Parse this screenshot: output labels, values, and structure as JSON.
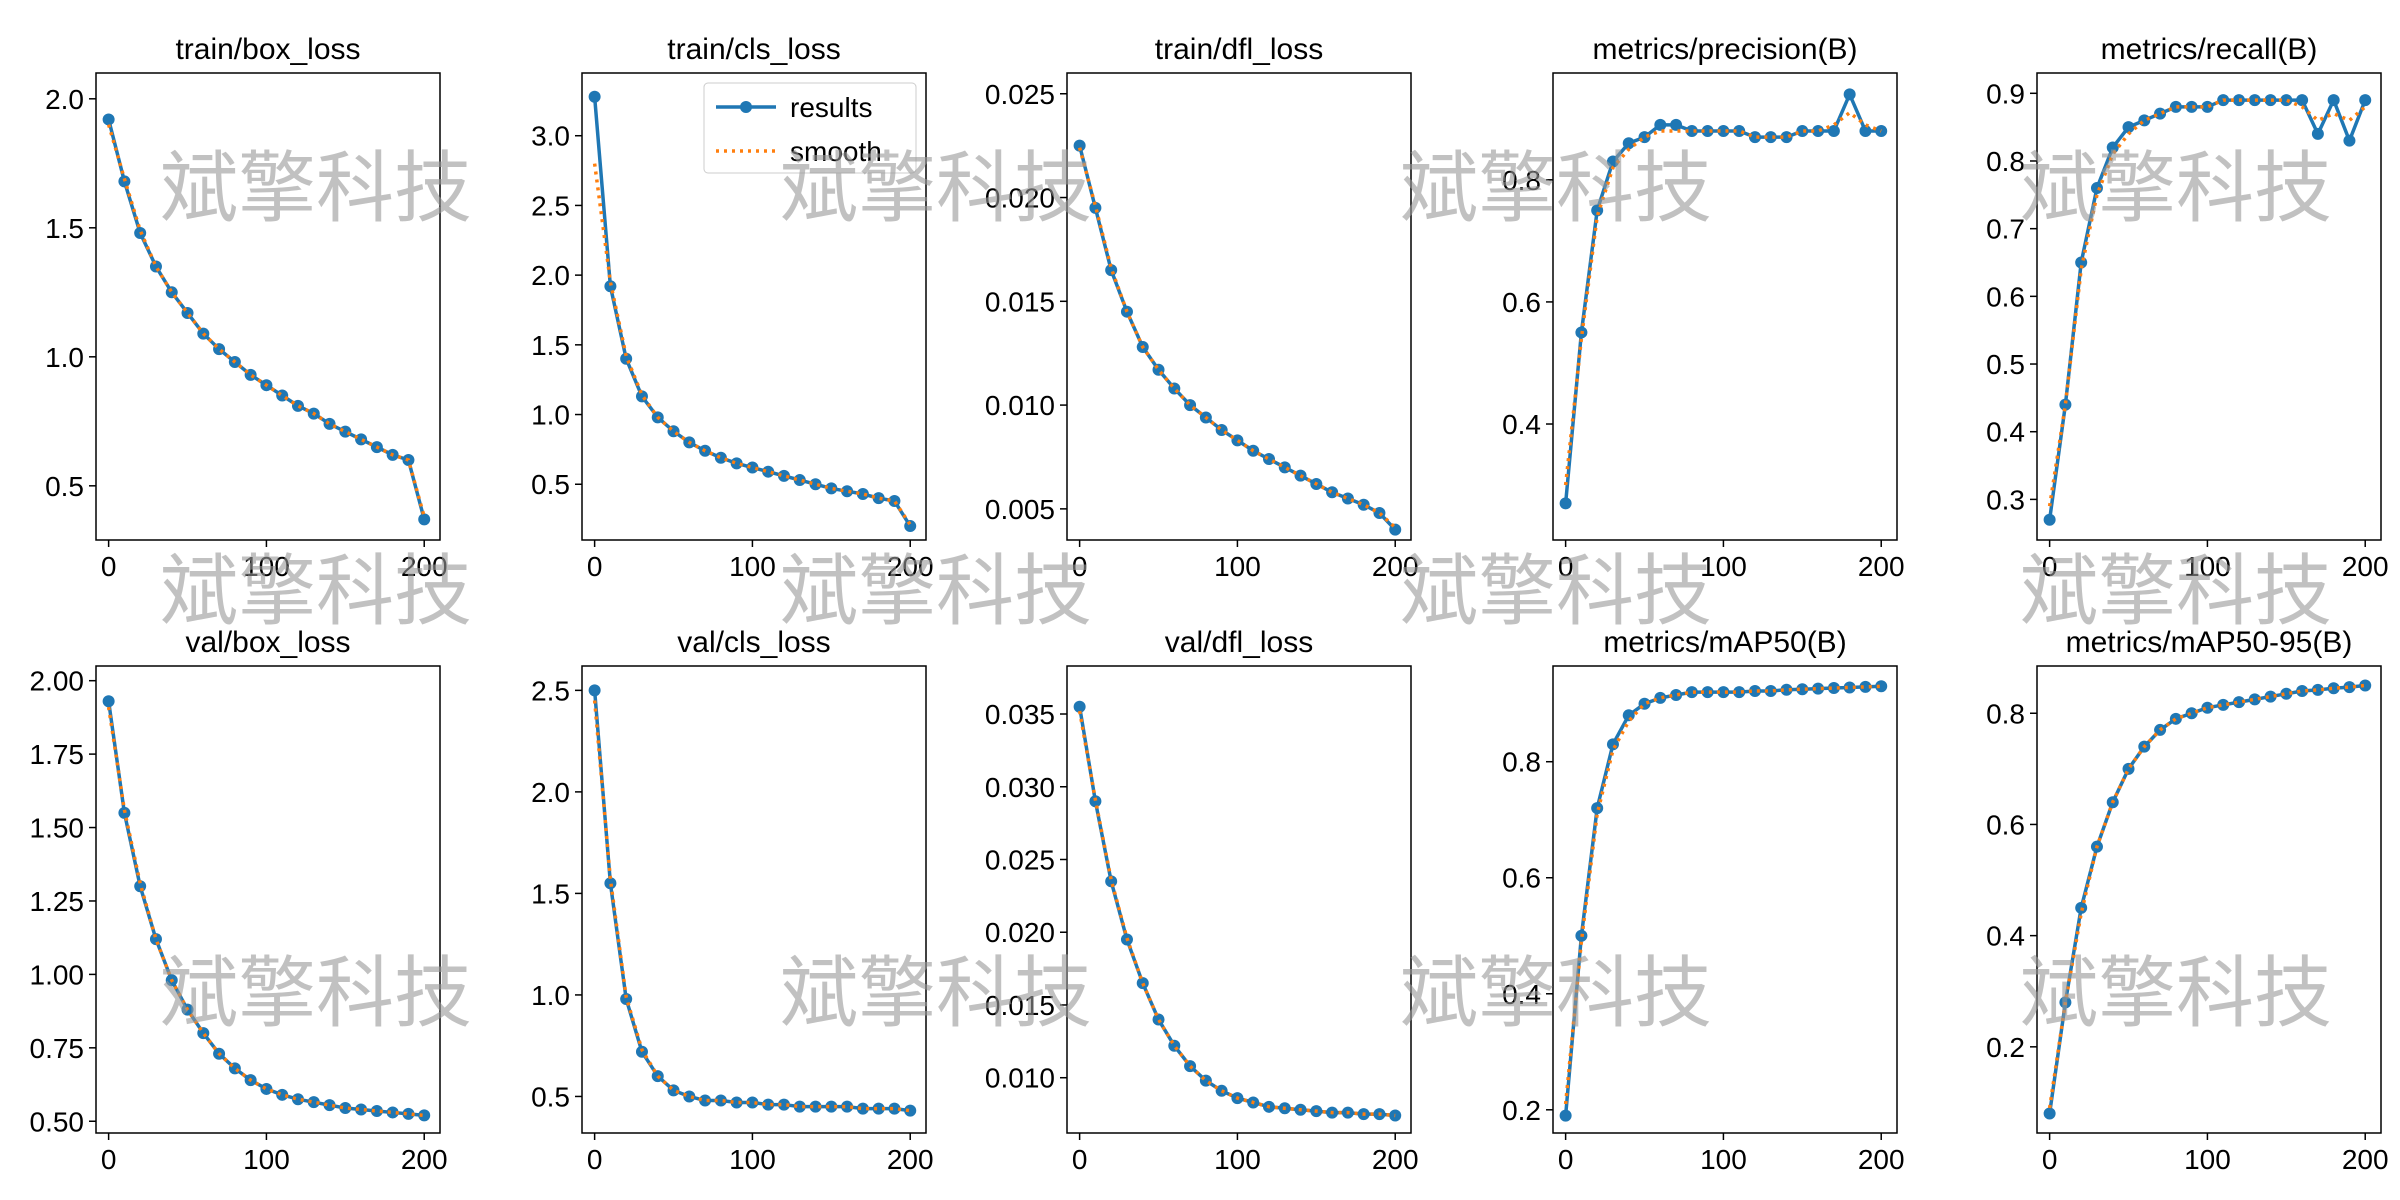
{
  "watermark": "斌擎科技",
  "chart_data": [
    {
      "type": "line",
      "title": "train/box_loss",
      "x": [
        0,
        10,
        20,
        30,
        40,
        50,
        60,
        70,
        80,
        90,
        100,
        110,
        120,
        130,
        140,
        150,
        160,
        170,
        180,
        190,
        200
      ],
      "xlim": [
        -8,
        210
      ],
      "xticks": [
        0,
        100,
        200
      ],
      "ylim": [
        0.29,
        2.1
      ],
      "yticks": [
        0.5,
        {
          "value": 1.0,
          "label": "1.0"
        },
        1.5,
        {
          "value": 2.0,
          "label": "2.0"
        }
      ],
      "legend": null,
      "series": [
        {
          "name": "results",
          "color": "#1f77b4",
          "values": [
            1.92,
            1.68,
            1.48,
            1.35,
            1.25,
            1.17,
            1.09,
            1.03,
            0.98,
            0.93,
            0.89,
            0.85,
            0.81,
            0.78,
            0.74,
            0.71,
            0.68,
            0.65,
            0.62,
            0.6,
            0.37
          ]
        },
        {
          "name": "smooth",
          "color": "#ff7f0e",
          "values": [
            1.9,
            1.69,
            1.49,
            1.35,
            1.25,
            1.17,
            1.09,
            1.03,
            0.98,
            0.93,
            0.89,
            0.85,
            0.81,
            0.78,
            0.74,
            0.71,
            0.68,
            0.65,
            0.62,
            0.6,
            0.38
          ]
        }
      ]
    },
    {
      "type": "line",
      "title": "train/cls_loss",
      "x": [
        0,
        10,
        20,
        30,
        40,
        50,
        60,
        70,
        80,
        90,
        100,
        110,
        120,
        130,
        140,
        150,
        160,
        170,
        180,
        190,
        200
      ],
      "xlim": [
        -8,
        210
      ],
      "xticks": [
        0,
        100,
        200
      ],
      "ylim": [
        0.1,
        3.45
      ],
      "yticks": [
        0.5,
        {
          "value": 1.0,
          "label": "1.0"
        },
        1.5,
        {
          "value": 2.0,
          "label": "2.0"
        },
        2.5,
        {
          "value": 3.0,
          "label": "3.0"
        }
      ],
      "legend": "upper right",
      "series": [
        {
          "name": "results",
          "color": "#1f77b4",
          "values": [
            3.28,
            1.92,
            1.4,
            1.13,
            0.98,
            0.88,
            0.8,
            0.74,
            0.69,
            0.65,
            0.62,
            0.59,
            0.56,
            0.53,
            0.5,
            0.47,
            0.45,
            0.43,
            0.4,
            0.38,
            0.2
          ]
        },
        {
          "name": "smooth",
          "color": "#ff7f0e",
          "values": [
            2.8,
            1.95,
            1.42,
            1.14,
            0.98,
            0.88,
            0.8,
            0.74,
            0.69,
            0.65,
            0.62,
            0.59,
            0.56,
            0.53,
            0.5,
            0.47,
            0.45,
            0.43,
            0.4,
            0.38,
            0.21
          ]
        }
      ]
    },
    {
      "type": "line",
      "title": "train/dfl_loss",
      "x": [
        0,
        10,
        20,
        30,
        40,
        50,
        60,
        70,
        80,
        90,
        100,
        110,
        120,
        130,
        140,
        150,
        160,
        170,
        180,
        190,
        200
      ],
      "xlim": [
        -8,
        210
      ],
      "xticks": [
        0,
        100,
        200
      ],
      "ylim": [
        0.0035,
        0.026
      ],
      "yticks": [
        0.005,
        {
          "value": 0.01,
          "label": "0.010"
        },
        0.015,
        {
          "value": 0.02,
          "label": "0.020"
        },
        0.025
      ],
      "legend": null,
      "series": [
        {
          "name": "results",
          "color": "#1f77b4",
          "values": [
            0.0225,
            0.0195,
            0.0165,
            0.0145,
            0.0128,
            0.0117,
            0.0108,
            0.01,
            0.0094,
            0.0088,
            0.0083,
            0.0078,
            0.0074,
            0.007,
            0.0066,
            0.0062,
            0.0058,
            0.0055,
            0.0052,
            0.0048,
            0.004
          ]
        },
        {
          "name": "smooth",
          "color": "#ff7f0e",
          "values": [
            0.0224,
            0.0196,
            0.0166,
            0.0145,
            0.0128,
            0.0117,
            0.0108,
            0.01,
            0.0094,
            0.0088,
            0.0083,
            0.0078,
            0.0074,
            0.007,
            0.0066,
            0.0062,
            0.0058,
            0.0055,
            0.0052,
            0.0048,
            0.0041
          ]
        }
      ]
    },
    {
      "type": "line",
      "title": "metrics/precision(B)",
      "x": [
        0,
        10,
        20,
        30,
        40,
        50,
        60,
        70,
        80,
        90,
        100,
        110,
        120,
        130,
        140,
        150,
        160,
        170,
        180,
        190,
        200
      ],
      "xlim": [
        -8,
        210
      ],
      "xticks": [
        0,
        100,
        200
      ],
      "ylim": [
        0.21,
        0.975
      ],
      "yticks": [
        0.4,
        0.6,
        0.8
      ],
      "legend": null,
      "series": [
        {
          "name": "results",
          "color": "#1f77b4",
          "values": [
            0.27,
            0.55,
            0.75,
            0.83,
            0.86,
            0.87,
            0.89,
            0.89,
            0.88,
            0.88,
            0.88,
            0.88,
            0.87,
            0.87,
            0.87,
            0.88,
            0.88,
            0.88,
            0.94,
            0.88,
            0.88
          ]
        },
        {
          "name": "smooth",
          "color": "#ff7f0e",
          "values": [
            0.3,
            0.54,
            0.74,
            0.82,
            0.85,
            0.87,
            0.88,
            0.88,
            0.88,
            0.88,
            0.88,
            0.88,
            0.87,
            0.87,
            0.87,
            0.88,
            0.88,
            0.89,
            0.91,
            0.89,
            0.88
          ]
        }
      ]
    },
    {
      "type": "line",
      "title": "metrics/recall(B)",
      "x": [
        0,
        10,
        20,
        30,
        40,
        50,
        60,
        70,
        80,
        90,
        100,
        110,
        120,
        130,
        140,
        150,
        160,
        170,
        180,
        190,
        200
      ],
      "xlim": [
        -8,
        210
      ],
      "xticks": [
        0,
        100,
        200
      ],
      "ylim": [
        0.24,
        0.93
      ],
      "yticks": [
        0.3,
        0.4,
        0.5,
        0.6,
        0.7,
        0.8,
        0.9
      ],
      "legend": null,
      "series": [
        {
          "name": "results",
          "color": "#1f77b4",
          "values": [
            0.27,
            0.44,
            0.65,
            0.76,
            0.82,
            0.85,
            0.86,
            0.87,
            0.88,
            0.88,
            0.88,
            0.89,
            0.89,
            0.89,
            0.89,
            0.89,
            0.89,
            0.84,
            0.89,
            0.83,
            0.89
          ]
        },
        {
          "name": "smooth",
          "color": "#ff7f0e",
          "values": [
            0.29,
            0.44,
            0.64,
            0.75,
            0.81,
            0.84,
            0.86,
            0.87,
            0.88,
            0.88,
            0.88,
            0.89,
            0.89,
            0.89,
            0.89,
            0.89,
            0.88,
            0.86,
            0.87,
            0.86,
            0.88
          ]
        }
      ]
    },
    {
      "type": "line",
      "title": "val/box_loss",
      "x": [
        0,
        10,
        20,
        30,
        40,
        50,
        60,
        70,
        80,
        90,
        100,
        110,
        120,
        130,
        140,
        150,
        160,
        170,
        180,
        190,
        200
      ],
      "xlim": [
        -8,
        210
      ],
      "xticks": [
        0,
        100,
        200
      ],
      "ylim": [
        0.46,
        2.05
      ],
      "yticks": [
        {
          "value": 0.5,
          "label": "0.50"
        },
        0.75,
        {
          "value": 1.0,
          "label": "1.00"
        },
        1.25,
        {
          "value": 1.5,
          "label": "1.50"
        },
        1.75,
        {
          "value": 2.0,
          "label": "2.00"
        }
      ],
      "legend": null,
      "series": [
        {
          "name": "results",
          "color": "#1f77b4",
          "values": [
            1.93,
            1.55,
            1.3,
            1.12,
            0.98,
            0.88,
            0.8,
            0.73,
            0.68,
            0.64,
            0.61,
            0.59,
            0.575,
            0.565,
            0.555,
            0.545,
            0.54,
            0.535,
            0.53,
            0.525,
            0.52
          ]
        },
        {
          "name": "smooth",
          "color": "#ff7f0e",
          "values": [
            1.91,
            1.56,
            1.31,
            1.12,
            0.98,
            0.88,
            0.8,
            0.73,
            0.68,
            0.64,
            0.61,
            0.59,
            0.575,
            0.565,
            0.555,
            0.545,
            0.54,
            0.535,
            0.53,
            0.525,
            0.52
          ]
        }
      ]
    },
    {
      "type": "line",
      "title": "val/cls_loss",
      "x": [
        0,
        10,
        20,
        30,
        40,
        50,
        60,
        70,
        80,
        90,
        100,
        110,
        120,
        130,
        140,
        150,
        160,
        170,
        180,
        190,
        200
      ],
      "xlim": [
        -8,
        210
      ],
      "xticks": [
        0,
        100,
        200
      ],
      "ylim": [
        0.32,
        2.62
      ],
      "yticks": [
        0.5,
        {
          "value": 1.0,
          "label": "1.0"
        },
        1.5,
        {
          "value": 2.0,
          "label": "2.0"
        },
        2.5
      ],
      "legend": null,
      "series": [
        {
          "name": "results",
          "color": "#1f77b4",
          "values": [
            2.5,
            1.55,
            0.98,
            0.72,
            0.6,
            0.53,
            0.5,
            0.48,
            0.48,
            0.47,
            0.47,
            0.46,
            0.46,
            0.45,
            0.45,
            0.45,
            0.45,
            0.44,
            0.44,
            0.44,
            0.43
          ]
        },
        {
          "name": "smooth",
          "color": "#ff7f0e",
          "values": [
            2.45,
            1.57,
            0.99,
            0.73,
            0.6,
            0.53,
            0.5,
            0.48,
            0.48,
            0.47,
            0.47,
            0.46,
            0.46,
            0.45,
            0.45,
            0.45,
            0.45,
            0.44,
            0.44,
            0.44,
            0.43
          ]
        }
      ]
    },
    {
      "type": "line",
      "title": "val/dfl_loss",
      "x": [
        0,
        10,
        20,
        30,
        40,
        50,
        60,
        70,
        80,
        90,
        100,
        110,
        120,
        130,
        140,
        150,
        160,
        170,
        180,
        190,
        200
      ],
      "xlim": [
        -8,
        210
      ],
      "xticks": [
        0,
        100,
        200
      ],
      "ylim": [
        0.0062,
        0.0383
      ],
      "yticks": [
        {
          "value": 0.01,
          "label": "0.010"
        },
        0.015,
        {
          "value": 0.02,
          "label": "0.020"
        },
        0.025,
        {
          "value": 0.03,
          "label": "0.030"
        },
        0.035
      ],
      "legend": null,
      "series": [
        {
          "name": "results",
          "color": "#1f77b4",
          "values": [
            0.0355,
            0.029,
            0.0235,
            0.0195,
            0.0165,
            0.014,
            0.0122,
            0.0108,
            0.0098,
            0.0091,
            0.0086,
            0.0083,
            0.008,
            0.0079,
            0.0078,
            0.0077,
            0.0076,
            0.0076,
            0.0075,
            0.0075,
            0.0074
          ]
        },
        {
          "name": "smooth",
          "color": "#ff7f0e",
          "values": [
            0.0352,
            0.0291,
            0.0236,
            0.0196,
            0.0165,
            0.014,
            0.0122,
            0.0108,
            0.0098,
            0.0091,
            0.0086,
            0.0083,
            0.008,
            0.0079,
            0.0078,
            0.0077,
            0.0076,
            0.0076,
            0.0075,
            0.0075,
            0.0074
          ]
        }
      ]
    },
    {
      "type": "line",
      "title": "metrics/mAP50(B)",
      "x": [
        0,
        10,
        20,
        30,
        40,
        50,
        60,
        70,
        80,
        90,
        100,
        110,
        120,
        130,
        140,
        150,
        160,
        170,
        180,
        190,
        200
      ],
      "xlim": [
        -8,
        210
      ],
      "xticks": [
        0,
        100,
        200
      ],
      "ylim": [
        0.16,
        0.965
      ],
      "yticks": [
        0.2,
        0.4,
        0.6,
        0.8
      ],
      "legend": null,
      "series": [
        {
          "name": "results",
          "color": "#1f77b4",
          "values": [
            0.19,
            0.5,
            0.72,
            0.83,
            0.88,
            0.9,
            0.91,
            0.915,
            0.92,
            0.92,
            0.92,
            0.92,
            0.922,
            0.922,
            0.924,
            0.925,
            0.926,
            0.927,
            0.928,
            0.929,
            0.93
          ]
        },
        {
          "name": "smooth",
          "color": "#ff7f0e",
          "values": [
            0.21,
            0.49,
            0.71,
            0.82,
            0.87,
            0.9,
            0.91,
            0.915,
            0.92,
            0.92,
            0.92,
            0.92,
            0.922,
            0.922,
            0.924,
            0.925,
            0.926,
            0.927,
            0.928,
            0.929,
            0.93
          ]
        }
      ]
    },
    {
      "type": "line",
      "title": "metrics/mAP50-95(B)",
      "x": [
        0,
        10,
        20,
        30,
        40,
        50,
        60,
        70,
        80,
        90,
        100,
        110,
        120,
        130,
        140,
        150,
        160,
        170,
        180,
        190,
        200
      ],
      "xlim": [
        -8,
        210
      ],
      "xticks": [
        0,
        100,
        200
      ],
      "ylim": [
        0.045,
        0.885
      ],
      "yticks": [
        0.2,
        0.4,
        0.6,
        0.8
      ],
      "legend": null,
      "series": [
        {
          "name": "results",
          "color": "#1f77b4",
          "values": [
            0.08,
            0.28,
            0.45,
            0.56,
            0.64,
            0.7,
            0.74,
            0.77,
            0.79,
            0.8,
            0.81,
            0.815,
            0.82,
            0.825,
            0.83,
            0.835,
            0.84,
            0.842,
            0.845,
            0.847,
            0.85
          ]
        },
        {
          "name": "smooth",
          "color": "#ff7f0e",
          "values": [
            0.09,
            0.28,
            0.44,
            0.56,
            0.64,
            0.7,
            0.74,
            0.77,
            0.79,
            0.8,
            0.81,
            0.815,
            0.82,
            0.825,
            0.83,
            0.835,
            0.84,
            0.842,
            0.845,
            0.847,
            0.85
          ]
        }
      ]
    }
  ]
}
